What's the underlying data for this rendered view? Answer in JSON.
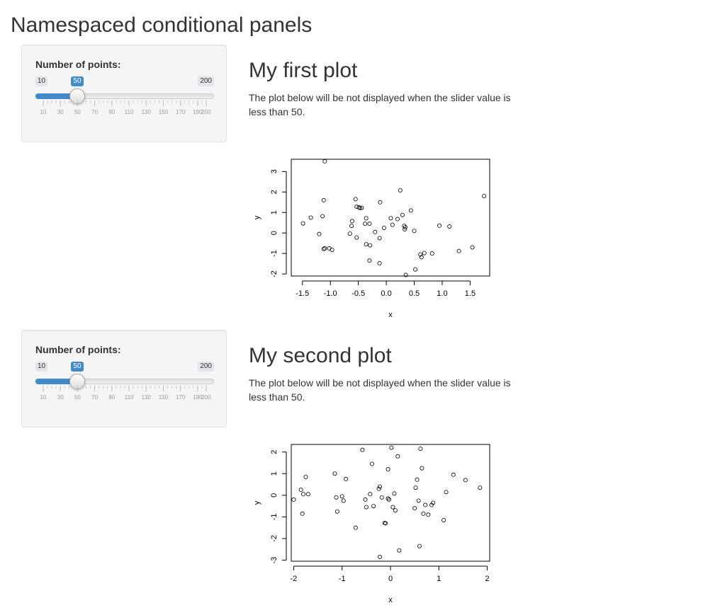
{
  "page": {
    "title": "Namespaced conditional panels"
  },
  "panels": [
    {
      "slider": {
        "label": "Number of points:",
        "min": 10,
        "max": 200,
        "value": 50,
        "min_label": "10",
        "max_label": "200",
        "value_label": "50",
        "tick_labels": [
          "10",
          "30",
          "50",
          "70",
          "90",
          "110",
          "130",
          "150",
          "170",
          "190",
          "200"
        ],
        "accent": "#428bca"
      },
      "plot_title": "My first plot",
      "description": "The plot below will be not displayed when the slider value is less than 50."
    },
    {
      "slider": {
        "label": "Number of points:",
        "min": 10,
        "max": 200,
        "value": 50,
        "min_label": "10",
        "max_label": "200",
        "value_label": "50",
        "tick_labels": [
          "10",
          "30",
          "50",
          "70",
          "90",
          "110",
          "130",
          "150",
          "170",
          "190",
          "200"
        ],
        "accent": "#428bca"
      },
      "plot_title": "My second plot",
      "description": "The plot below will be not displayed when the slider value is less than 50."
    }
  ],
  "chart_data": [
    {
      "type": "scatter",
      "xlabel": "x",
      "ylabel": "y",
      "xlim": [
        -1.7,
        1.85
      ],
      "ylim": [
        -2.1,
        3.6
      ],
      "xticks": [
        -1.5,
        -1.0,
        -0.5,
        0.0,
        0.5,
        1.0,
        1.5
      ],
      "xtick_labels": [
        "-1.5",
        "-1.0",
        "-0.5",
        "0.0",
        "0.5",
        "1.0",
        "1.5"
      ],
      "yticks": [
        -2,
        -1,
        0,
        1,
        2,
        3
      ],
      "ytick_labels": [
        "-2",
        "-1",
        "0",
        "1",
        "2",
        "3"
      ],
      "points": [
        [
          -1.1,
          3.5
        ],
        [
          -1.49,
          0.47
        ],
        [
          -1.35,
          0.75
        ],
        [
          -1.2,
          -0.05
        ],
        [
          -1.14,
          0.82
        ],
        [
          -1.12,
          1.6
        ],
        [
          -1.12,
          -0.78
        ],
        [
          -1.1,
          -0.75
        ],
        [
          -1.02,
          -0.75
        ],
        [
          -0.97,
          -0.82
        ],
        [
          -0.65,
          -0.03
        ],
        [
          -0.62,
          0.35
        ],
        [
          -0.61,
          0.58
        ],
        [
          -0.55,
          1.65
        ],
        [
          -0.53,
          1.28
        ],
        [
          -0.53,
          -0.22
        ],
        [
          -0.49,
          1.25
        ],
        [
          -0.47,
          1.22
        ],
        [
          -0.44,
          1.23
        ],
        [
          -0.38,
          0.45
        ],
        [
          -0.36,
          0.72
        ],
        [
          -0.36,
          -0.55
        ],
        [
          -0.3,
          0.45
        ],
        [
          -0.29,
          -0.6
        ],
        [
          -0.3,
          -1.35
        ],
        [
          -0.2,
          0.05
        ],
        [
          -0.12,
          -0.25
        ],
        [
          -0.11,
          1.5
        ],
        [
          -0.12,
          -1.48
        ],
        [
          -0.04,
          0.25
        ],
        [
          0.08,
          0.72
        ],
        [
          0.11,
          0.4
        ],
        [
          0.2,
          0.68
        ],
        [
          0.25,
          2.08
        ],
        [
          0.29,
          0.88
        ],
        [
          0.32,
          0.35
        ],
        [
          0.33,
          0.18
        ],
        [
          0.34,
          0.28
        ],
        [
          0.44,
          1.1
        ],
        [
          0.5,
          0.1
        ],
        [
          0.61,
          -1.05
        ],
        [
          0.63,
          -1.18
        ],
        [
          0.68,
          -0.98
        ],
        [
          0.82,
          -1.0
        ],
        [
          0.35,
          -2.05
        ],
        [
          0.52,
          -1.78
        ],
        [
          0.95,
          0.36
        ],
        [
          1.13,
          0.32
        ],
        [
          1.3,
          -0.88
        ],
        [
          1.54,
          -0.7
        ],
        [
          1.75,
          1.8
        ]
      ]
    },
    {
      "type": "scatter",
      "xlabel": "x",
      "ylabel": "y",
      "xlim": [
        -2.05,
        2.05
      ],
      "ylim": [
        -3.05,
        2.35
      ],
      "xticks": [
        -2,
        -1,
        0,
        1,
        2
      ],
      "xtick_labels": [
        "-2",
        "-1",
        "0",
        "1",
        "2"
      ],
      "yticks": [
        -3,
        -2,
        -1,
        0,
        1,
        2
      ],
      "ytick_labels": [
        "-3",
        "-2",
        "-1",
        "0",
        "1",
        "2"
      ],
      "points": [
        [
          -2.0,
          -0.2
        ],
        [
          -1.85,
          0.25
        ],
        [
          -1.8,
          0.05
        ],
        [
          -1.75,
          0.85
        ],
        [
          -1.7,
          0.05
        ],
        [
          -1.82,
          -0.85
        ],
        [
          -1.15,
          1.0
        ],
        [
          -1.12,
          -0.1
        ],
        [
          -1.1,
          -0.75
        ],
        [
          -1.0,
          -0.05
        ],
        [
          -0.97,
          -0.25
        ],
        [
          -0.92,
          0.75
        ],
        [
          -0.72,
          -1.5
        ],
        [
          -0.58,
          2.1
        ],
        [
          -0.52,
          -0.2
        ],
        [
          -0.5,
          -0.55
        ],
        [
          -0.42,
          0.05
        ],
        [
          -0.38,
          1.45
        ],
        [
          -0.35,
          -0.5
        ],
        [
          -0.24,
          0.3
        ],
        [
          -0.22,
          0.4
        ],
        [
          -0.18,
          -0.1
        ],
        [
          -0.12,
          -1.28
        ],
        [
          -0.1,
          -1.3
        ],
        [
          -0.05,
          1.2
        ],
        [
          -0.03,
          -0.2
        ],
        [
          0.02,
          2.2
        ],
        [
          0.05,
          -0.55
        ],
        [
          0.08,
          0.08
        ],
        [
          0.1,
          -0.7
        ],
        [
          0.15,
          1.8
        ],
        [
          0.18,
          -2.55
        ],
        [
          0.5,
          -0.6
        ],
        [
          0.52,
          0.35
        ],
        [
          0.55,
          0.72
        ],
        [
          0.58,
          -0.25
        ],
        [
          0.62,
          2.15
        ],
        [
          0.65,
          1.25
        ],
        [
          0.68,
          -0.85
        ],
        [
          0.72,
          -0.45
        ],
        [
          0.78,
          -0.9
        ],
        [
          0.85,
          -0.45
        ],
        [
          0.88,
          -0.35
        ],
        [
          1.1,
          -1.15
        ],
        [
          1.15,
          0.15
        ],
        [
          1.3,
          0.95
        ],
        [
          1.55,
          0.7
        ],
        [
          1.85,
          0.35
        ],
        [
          -0.22,
          -2.85
        ],
        [
          0.6,
          -2.35
        ],
        [
          -0.05,
          -0.15
        ]
      ]
    }
  ]
}
